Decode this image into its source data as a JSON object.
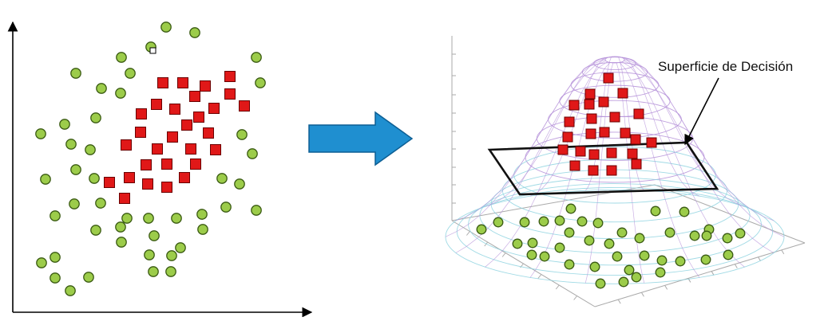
{
  "annotation": "Superficie de Decisión",
  "colors": {
    "class_a_fill": "#9ccc4a",
    "class_a_stroke": "#3a5a12",
    "class_b_fill": "#e01818",
    "class_b_stroke": "#6a0000",
    "arrow_fill": "#1f8fd0",
    "arrow_stroke": "#0d5f94",
    "surface_mesh": "#b48fd8",
    "surface_mesh_low": "#8fd4e0",
    "axis": "#000000"
  },
  "icons": {
    "transform_arrow": "right-arrow-icon",
    "class_a_marker": "circle-marker",
    "class_b_marker": "square-marker"
  }
}
